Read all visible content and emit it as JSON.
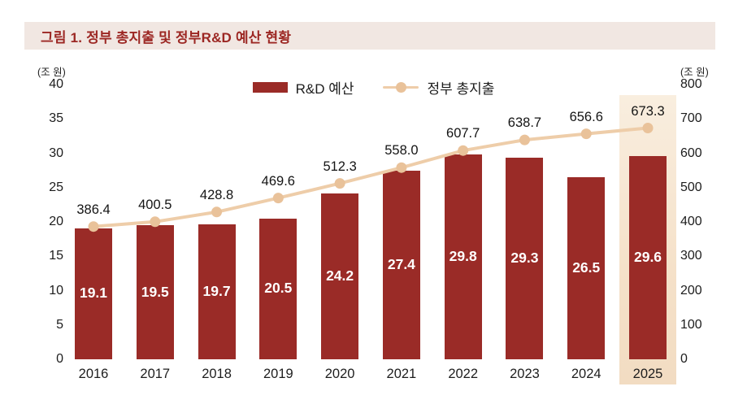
{
  "figure": {
    "title": "그림 1. 정부 총지출 및 정부R&D 예산 현황"
  },
  "legend": [
    {
      "label": "R&D 예산",
      "type": "bar",
      "color": "#9a2b27"
    },
    {
      "label": "정부 총지출",
      "type": "line",
      "color": "#eecda9"
    }
  ],
  "axes": {
    "left": {
      "unit": "(조 원)",
      "ticks": [
        40,
        35,
        30,
        25,
        20,
        15,
        10,
        5,
        0
      ],
      "max": 40
    },
    "right": {
      "unit": "(조 원)",
      "ticks": [
        800,
        700,
        600,
        500,
        400,
        300,
        200,
        100,
        0
      ],
      "max": 800
    }
  },
  "chart_data": {
    "type": "bar+line",
    "title": "그림 1. 정부 총지출 및 정부R&D 예산 현황",
    "categories": [
      "2016",
      "2017",
      "2018",
      "2019",
      "2020",
      "2021",
      "2022",
      "2023",
      "2024",
      "2025"
    ],
    "series": [
      {
        "name": "R&D 예산",
        "type": "bar",
        "axis": "left",
        "color": "#9a2b27",
        "values": [
          19.1,
          19.5,
          19.7,
          20.5,
          24.2,
          27.4,
          29.8,
          29.3,
          26.5,
          29.6
        ]
      },
      {
        "name": "정부 총지출",
        "type": "line",
        "axis": "right",
        "color": "#eecda9",
        "marker_color": "#e9c29a",
        "values": [
          386.4,
          400.5,
          428.8,
          469.6,
          512.3,
          558.0,
          607.7,
          638.7,
          656.6,
          673.3
        ]
      }
    ],
    "left_axis": {
      "label": "(조 원)",
      "range": [
        0,
        40
      ],
      "tick_step": 5
    },
    "right_axis": {
      "label": "(조 원)",
      "range": [
        0,
        800
      ],
      "tick_step": 100
    },
    "highlight_category": "2025",
    "highlight_color": "#f5e1c9",
    "grid": false,
    "legend_position": "top-center",
    "bar_value_labels": "inside-white",
    "line_value_labels": "above-points"
  },
  "colors": {
    "bar": "#9a2b27",
    "line": "#eecda9",
    "marker": "#e9c29a",
    "title_band_bg": "#f1e7e2",
    "title_text": "#9c2723",
    "highlight_band": "#f5e1c9",
    "background": "#ffffff",
    "text": "#1d1d1d"
  }
}
